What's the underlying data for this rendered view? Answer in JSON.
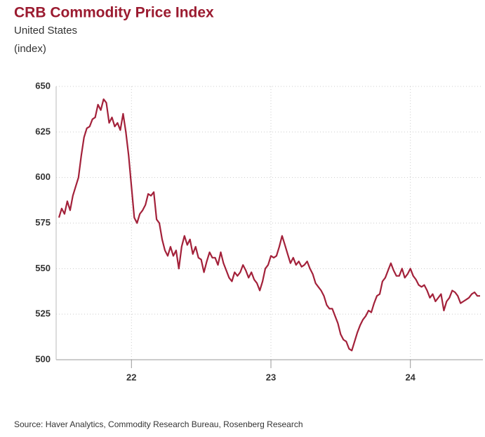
{
  "chart_data": {
    "type": "line",
    "title": "CRB Commodity Price Index",
    "subtitle": "United States",
    "y_label": "(index)",
    "source": "Source: Haver Analytics, Commodity Research Bureau, Rosenberg Research",
    "x": [
      21.48,
      21.5,
      21.52,
      21.54,
      21.56,
      21.58,
      21.6,
      21.62,
      21.64,
      21.66,
      21.68,
      21.7,
      21.72,
      21.74,
      21.76,
      21.78,
      21.8,
      21.82,
      21.84,
      21.86,
      21.88,
      21.9,
      21.92,
      21.94,
      21.96,
      21.98,
      22,
      22.02,
      22.04,
      22.06,
      22.08,
      22.1,
      22.12,
      22.14,
      22.16,
      22.18,
      22.2,
      22.22,
      22.24,
      22.26,
      22.28,
      22.3,
      22.32,
      22.34,
      22.36,
      22.38,
      22.4,
      22.42,
      22.44,
      22.46,
      22.48,
      22.5,
      22.52,
      22.54,
      22.56,
      22.58,
      22.6,
      22.62,
      22.64,
      22.66,
      22.68,
      22.7,
      22.72,
      22.74,
      22.76,
      22.78,
      22.8,
      22.82,
      22.84,
      22.86,
      22.88,
      22.9,
      22.92,
      22.94,
      22.96,
      22.98,
      23,
      23.02,
      23.04,
      23.06,
      23.08,
      23.1,
      23.12,
      23.14,
      23.16,
      23.18,
      23.2,
      23.22,
      23.24,
      23.26,
      23.28,
      23.3,
      23.32,
      23.34,
      23.36,
      23.38,
      23.4,
      23.42,
      23.44,
      23.46,
      23.48,
      23.5,
      23.52,
      23.54,
      23.56,
      23.58,
      23.6,
      23.62,
      23.64,
      23.66,
      23.68,
      23.7,
      23.72,
      23.74,
      23.76,
      23.78,
      23.8,
      23.82,
      23.84,
      23.86,
      23.88,
      23.9,
      23.92,
      23.94,
      23.96,
      23.98,
      24,
      24.02,
      24.04,
      24.06,
      24.08,
      24.1,
      24.12,
      24.14,
      24.16,
      24.18,
      24.2,
      24.22,
      24.24,
      24.26,
      24.28,
      24.3,
      24.32,
      24.34,
      24.36,
      24.38,
      24.4,
      24.42,
      24.44,
      24.46,
      24.48,
      24.5
    ],
    "series": [
      {
        "color": "#a3213a",
        "values": [
          578,
          583,
          580,
          587,
          582,
          590,
          595,
          600,
          612,
          622,
          627,
          628,
          632,
          633,
          640,
          637,
          643,
          641,
          630,
          633,
          628,
          630,
          626,
          635,
          625,
          612,
          595,
          578,
          575,
          580,
          582,
          585,
          591,
          590,
          592,
          577,
          575,
          566,
          560,
          557,
          562,
          557,
          560,
          550,
          562,
          568,
          563,
          566,
          558,
          562,
          556,
          555,
          548,
          554,
          559,
          556,
          556,
          552,
          559,
          553,
          549,
          545,
          543,
          548,
          546,
          548,
          552,
          549,
          545,
          548,
          544,
          542,
          538,
          543,
          550,
          552,
          557,
          556,
          557,
          562,
          568,
          563,
          558,
          553,
          556,
          552,
          554,
          551,
          552,
          554,
          550,
          547,
          542,
          540,
          538,
          535,
          530,
          528,
          528,
          524,
          520,
          514,
          511,
          510,
          506,
          505,
          510,
          515,
          519,
          522,
          524,
          527,
          526,
          531,
          535,
          536,
          543,
          545,
          549,
          553,
          549,
          546,
          546,
          550,
          545,
          547,
          550,
          546,
          544,
          541,
          540,
          541,
          538,
          534,
          536,
          532,
          534,
          536,
          527,
          532,
          534,
          538,
          537,
          535,
          531,
          532,
          533,
          534,
          536,
          537,
          535,
          535
        ]
      }
    ],
    "xlim": [
      21.46,
      24.52
    ],
    "xticks": [
      22,
      23,
      24
    ],
    "ylim": [
      500,
      650
    ],
    "yticks": [
      500,
      525,
      550,
      575,
      600,
      625,
      650
    ],
    "grid": true
  }
}
